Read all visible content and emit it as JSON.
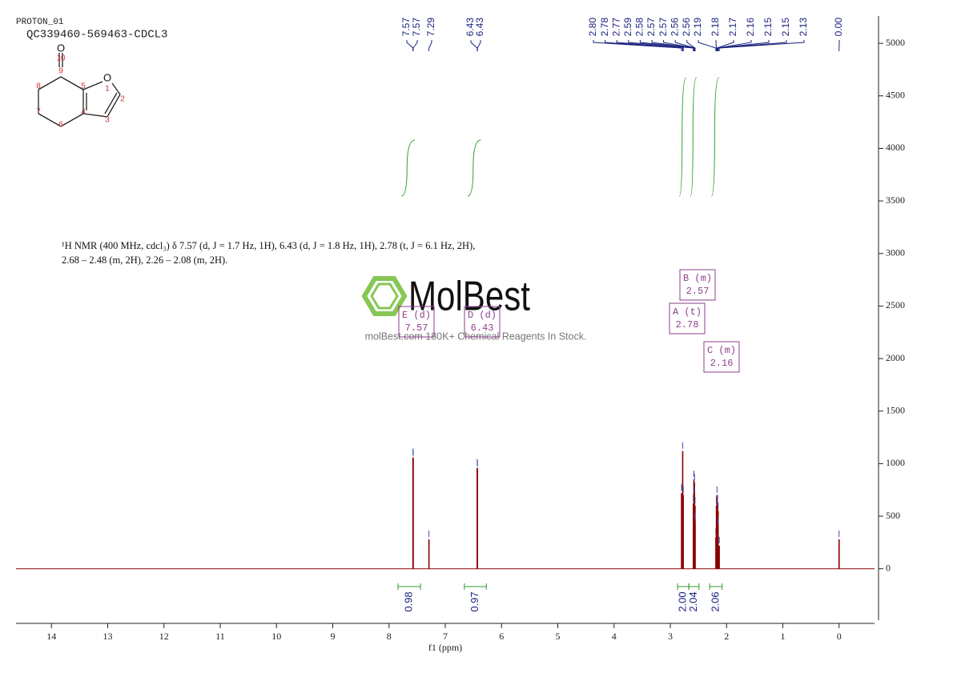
{
  "header": {
    "experiment": "PROTON_01",
    "sample": "QC339460-569463-CDCL3"
  },
  "structure": {
    "atoms": [
      "O",
      "10",
      "9",
      "8",
      "7",
      "6",
      "5",
      "4",
      "3",
      "2",
      "1",
      "O"
    ]
  },
  "description": [
    "¹H NMR (400 MHz, cdcl₃) δ 7.57 (d, J = 1.7 Hz, 1H), 6.43 (d, J = 1.8 Hz, 1H), 2.78 (t, J = 6.1 Hz, 2H),",
    "2.68 – 2.48 (m, 2H), 2.26 – 2.08 (m, 2H)."
  ],
  "watermark": {
    "brand": "MolBest",
    "tagline": "molBest.com 180K+ Chemical Reagents In Stock."
  },
  "chart_data": {
    "type": "spectrum",
    "x_label": "f1 (ppm)",
    "xlim": [
      14.63,
      -0.63
    ],
    "xticks": [
      14,
      13,
      12,
      11,
      10,
      9,
      8,
      7,
      6,
      5,
      4,
      3,
      2,
      1,
      0
    ],
    "ylim": [
      -520,
      5260
    ],
    "yticks": [
      0,
      500,
      1000,
      1500,
      2000,
      2500,
      3000,
      3500,
      4000,
      4500,
      5000
    ],
    "color": "#8b0000",
    "peaks": {
      "x": [
        7.574,
        7.57,
        7.29,
        6.432,
        6.428,
        2.8,
        2.78,
        2.77,
        2.59,
        2.58,
        2.57,
        2.57,
        2.56,
        2.56,
        2.19,
        2.18,
        2.17,
        2.16,
        2.15,
        2.15,
        2.13,
        0.0
      ],
      "values": [
        1060,
        1050,
        280,
        960,
        950,
        720,
        1120,
        700,
        620,
        850,
        820,
        700,
        600,
        450,
        300,
        600,
        700,
        620,
        550,
        400,
        220,
        280
      ],
      "labels": [
        "7.57",
        "7.57",
        "7.29",
        "6.43",
        "6.43",
        "2.80",
        "2.78",
        "2.77",
        "2.59",
        "2.58",
        "2.57",
        "2.57",
        "2.56",
        "2.56",
        "2.19",
        "2.18",
        "2.17",
        "2.16",
        "2.15",
        "2.15",
        "2.13",
        "0.00"
      ]
    },
    "integrals": [
      {
        "label": "0.98",
        "range": [
          7.84,
          7.44
        ]
      },
      {
        "label": "0.97",
        "range": [
          6.66,
          6.27
        ]
      },
      {
        "label": "2.00",
        "range": [
          2.87,
          2.67
        ]
      },
      {
        "label": "2.04",
        "range": [
          2.67,
          2.49
        ]
      },
      {
        "label": "2.06",
        "range": [
          2.3,
          2.08
        ]
      }
    ],
    "multiplets": [
      {
        "name": "E (d)",
        "shift": "7.57"
      },
      {
        "name": "D (d)",
        "shift": "6.43"
      },
      {
        "name": "A (t)",
        "shift": "2.78"
      },
      {
        "name": "B (m)",
        "shift": "2.57"
      },
      {
        "name": "C (m)",
        "shift": "2.16"
      }
    ]
  }
}
